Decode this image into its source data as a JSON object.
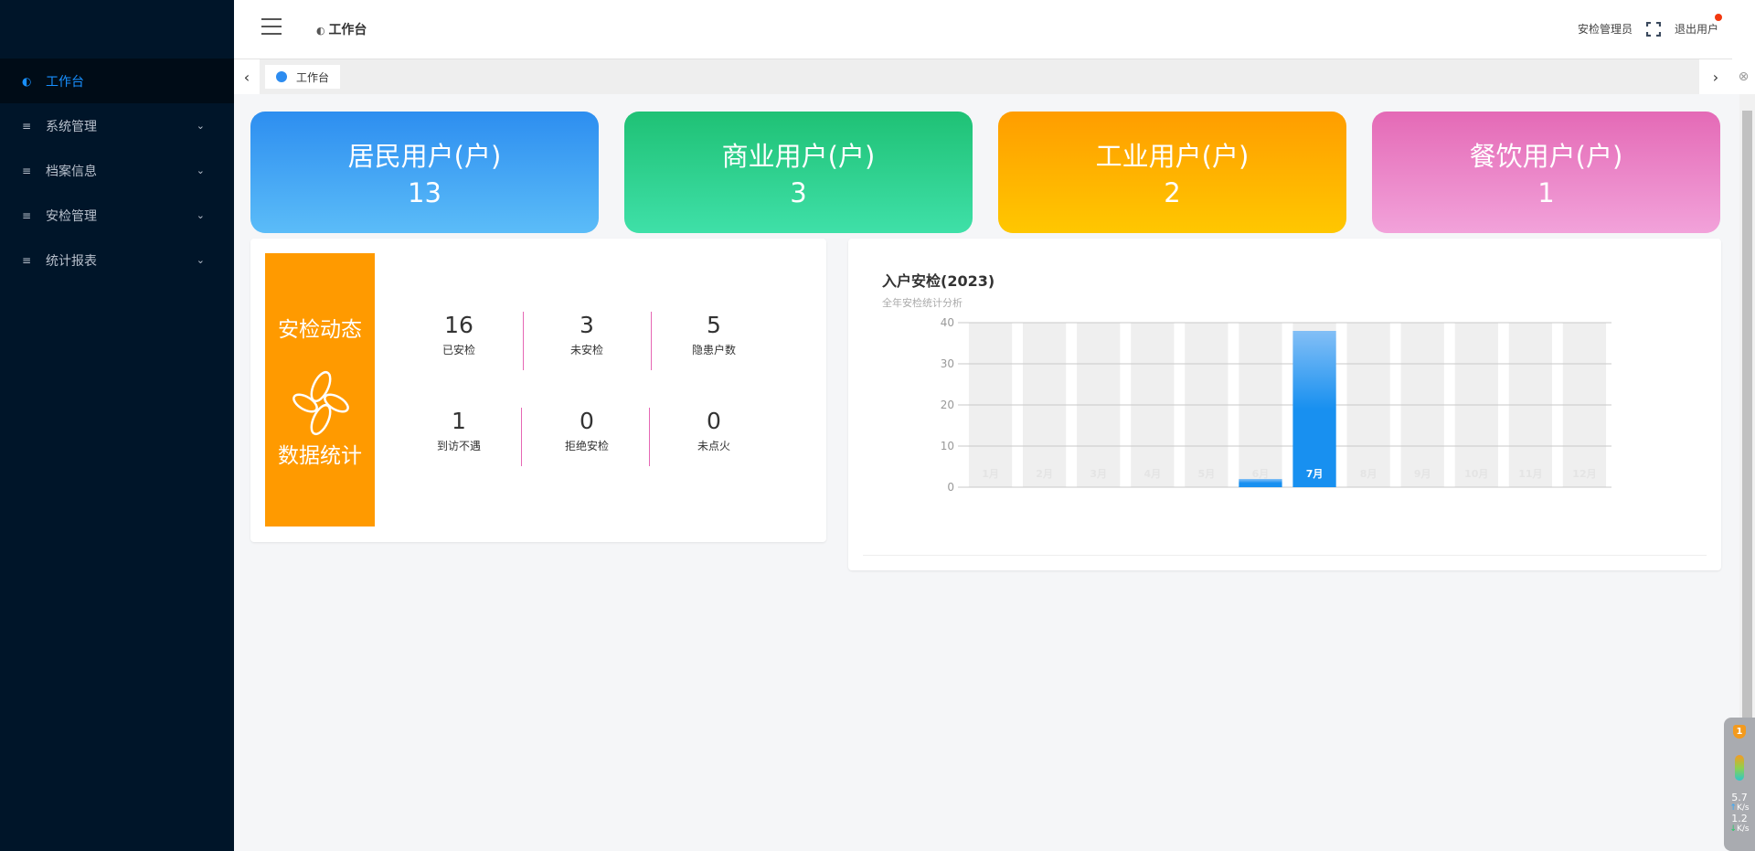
{
  "sidebar": {
    "items": [
      {
        "label": "工作台",
        "icon": "planet-icon",
        "active": true
      },
      {
        "label": "系统管理",
        "icon": "menu-icon"
      },
      {
        "label": "档案信息",
        "icon": "menu-icon"
      },
      {
        "label": "安检管理",
        "icon": "menu-icon"
      },
      {
        "label": "统计报表",
        "icon": "menu-icon"
      }
    ]
  },
  "header": {
    "breadcrumb": "工作台",
    "user": "安检管理员",
    "logout": "退出用户"
  },
  "tabs": [
    {
      "label": "工作台"
    }
  ],
  "cards": [
    {
      "title": "居民用户(户)",
      "value": "13",
      "from": "#2d8ef0",
      "to": "#5bbcf8"
    },
    {
      "title": "商业用户(户)",
      "value": "3",
      "from": "#1fc175",
      "to": "#3fe0a8"
    },
    {
      "title": "工业用户(户)",
      "value": "2",
      "from": "#ff9d00",
      "to": "#ffc700"
    },
    {
      "title": "餐饮用户(户)",
      "value": "1",
      "from": "#e46ab6",
      "to": "#f2a2da"
    }
  ],
  "stats": {
    "label_top": "安检动态",
    "label_bottom": "数据统计",
    "items": [
      {
        "value": "16",
        "label": "已安检"
      },
      {
        "value": "3",
        "label": "未安检"
      },
      {
        "value": "5",
        "label": "隐患户数"
      },
      {
        "value": "1",
        "label": "到访不遇"
      },
      {
        "value": "0",
        "label": "拒绝安检"
      },
      {
        "value": "0",
        "label": "未点火"
      }
    ]
  },
  "chart_data": {
    "type": "bar",
    "title": "入户安检(2023)",
    "subtitle": "全年安检统计分析",
    "categories": [
      "1月",
      "2月",
      "3月",
      "4月",
      "5月",
      "6月",
      "7月",
      "8月",
      "9月",
      "10月",
      "11月",
      "12月"
    ],
    "values": [
      0,
      0,
      0,
      0,
      0,
      2,
      38,
      0,
      0,
      0,
      0,
      0
    ],
    "ylim": [
      0,
      40
    ],
    "yticks": [
      "0",
      "10",
      "20",
      "30",
      "40"
    ],
    "grid": true,
    "bar_color": "#1890f0",
    "background_bar_color": "#efefef"
  },
  "widget": {
    "badge": "1",
    "up": "5.7",
    "down": "1.2",
    "unit": "K/s"
  }
}
